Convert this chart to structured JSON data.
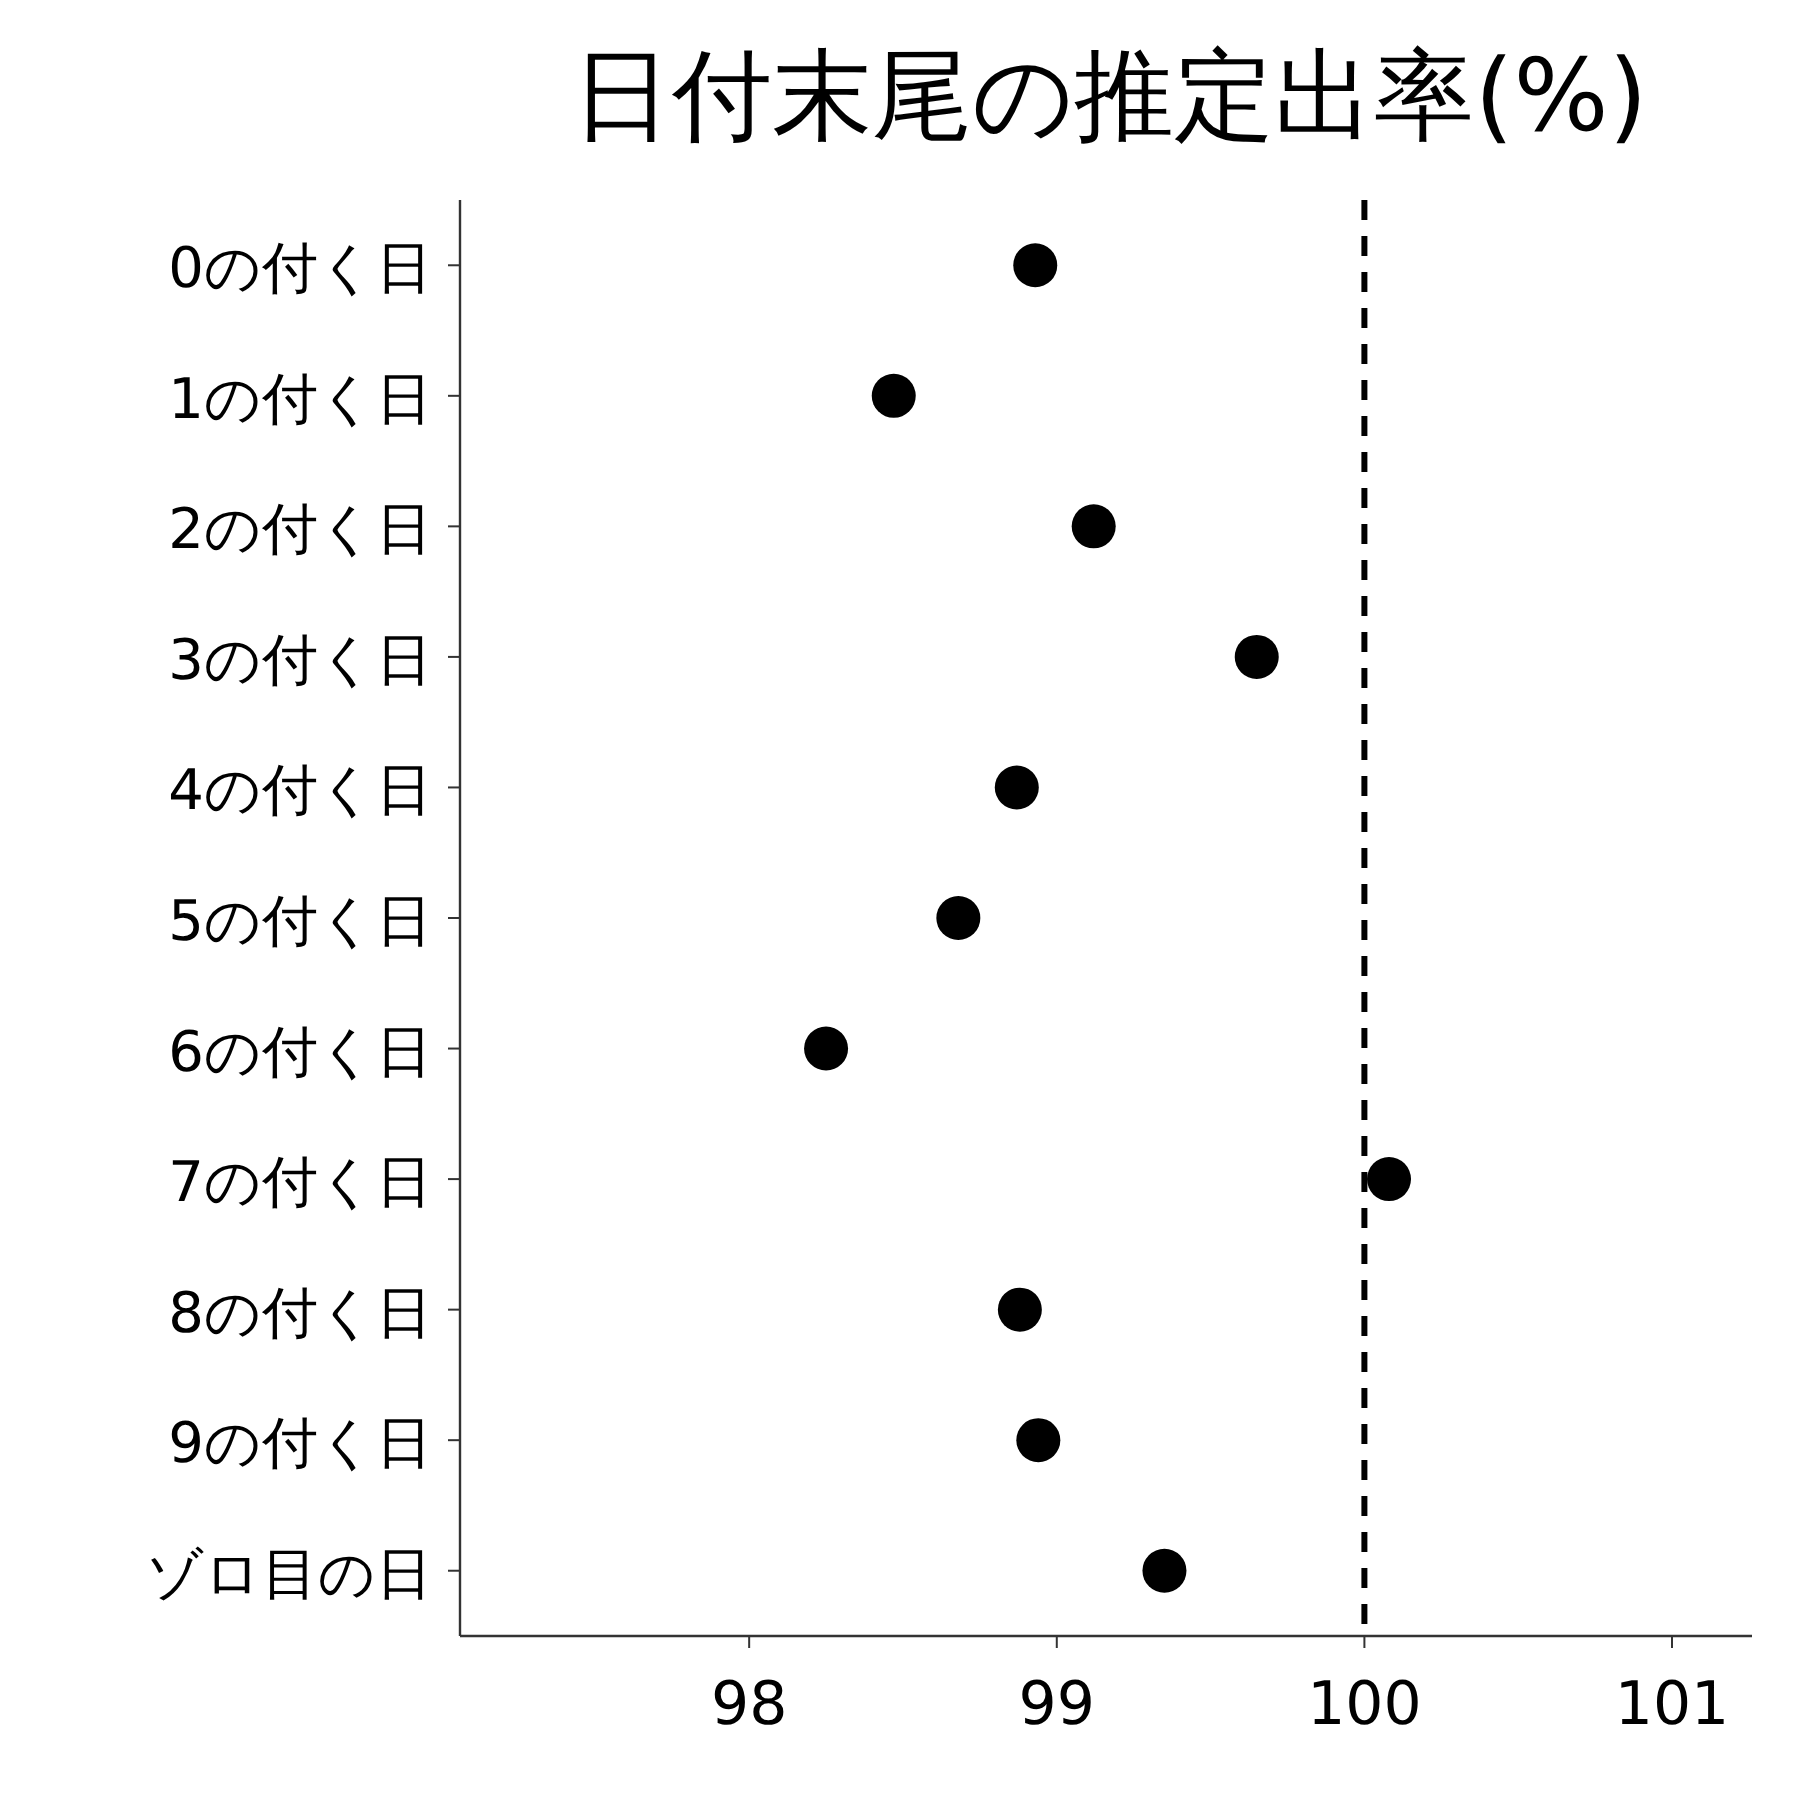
{
  "chart_data": {
    "type": "scatter",
    "title": "日付末尾の推定出率(%)",
    "orientation": "horizontal",
    "categories": [
      "0の付く日",
      "1の付く日",
      "2の付く日",
      "3の付く日",
      "4の付く日",
      "5の付く日",
      "6の付く日",
      "7の付く日",
      "8の付く日",
      "9の付く日",
      "ゾロ目の日"
    ],
    "values": [
      98.93,
      98.47,
      99.12,
      99.65,
      98.87,
      98.68,
      98.25,
      100.08,
      98.88,
      98.94,
      99.35
    ],
    "color": "#000000",
    "marker": "circle",
    "xlim": [
      97.06,
      101.26
    ],
    "xticks": [
      98,
      99,
      100,
      101
    ],
    "grid": false,
    "ref_lines": [
      {
        "axis": "x",
        "value": 100,
        "color": "#000000",
        "line_style": "dashed"
      }
    ]
  }
}
